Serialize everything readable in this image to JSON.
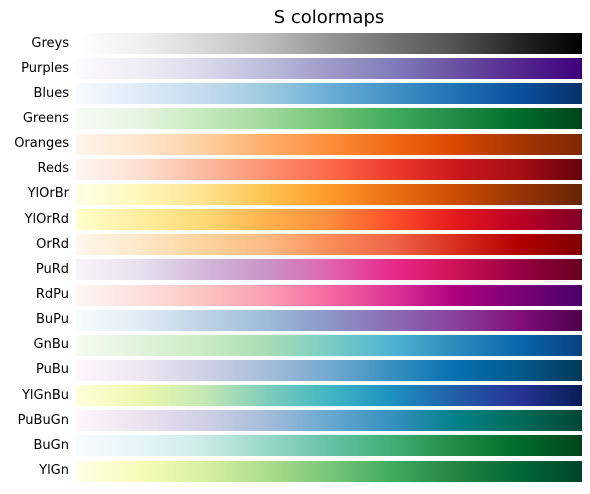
{
  "chart_data": {
    "type": "heatmap",
    "title": "S colormaps",
    "xlabel": "",
    "ylabel": "",
    "grid": false,
    "colormaps": [
      {
        "name": "Greys",
        "stops": [
          "#ffffff",
          "#f0f0f0",
          "#d9d9d9",
          "#bdbdbd",
          "#969696",
          "#737373",
          "#525252",
          "#252525",
          "#000000"
        ]
      },
      {
        "name": "Purples",
        "stops": [
          "#fcfbfd",
          "#efedf5",
          "#dadaeb",
          "#bcbddc",
          "#9e9ac8",
          "#807dba",
          "#6a51a3",
          "#54278f",
          "#3f007d"
        ]
      },
      {
        "name": "Blues",
        "stops": [
          "#f7fbff",
          "#deebf7",
          "#c6dbef",
          "#9ecae1",
          "#6baed6",
          "#4292c6",
          "#2171b5",
          "#08519c",
          "#08306b"
        ]
      },
      {
        "name": "Greens",
        "stops": [
          "#f7fcf5",
          "#e5f5e0",
          "#c7e9c0",
          "#a1d99b",
          "#74c476",
          "#41ab5d",
          "#238b45",
          "#006d2c",
          "#00441b"
        ]
      },
      {
        "name": "Oranges",
        "stops": [
          "#fff5eb",
          "#fee6ce",
          "#fdd0a2",
          "#fdae6b",
          "#fd8d3c",
          "#f16913",
          "#d94801",
          "#a63603",
          "#7f2704"
        ]
      },
      {
        "name": "Reds",
        "stops": [
          "#fff5f0",
          "#fee0d2",
          "#fcbba1",
          "#fc9272",
          "#fb6a4a",
          "#ef3b2c",
          "#cb181d",
          "#a50f15",
          "#67000d"
        ]
      },
      {
        "name": "YlOrBr",
        "stops": [
          "#ffffe5",
          "#fff7bc",
          "#fee391",
          "#fec44f",
          "#fe9929",
          "#ec7014",
          "#cc4c02",
          "#993404",
          "#662506"
        ]
      },
      {
        "name": "YlOrRd",
        "stops": [
          "#ffffcc",
          "#ffeda0",
          "#fed976",
          "#feb24c",
          "#fd8d3c",
          "#fc4e2a",
          "#e31a1c",
          "#bd0026",
          "#800026"
        ]
      },
      {
        "name": "OrRd",
        "stops": [
          "#fff7ec",
          "#fee8c8",
          "#fdd49e",
          "#fdbb84",
          "#fc8d59",
          "#ef6548",
          "#d7301f",
          "#b30000",
          "#7f0000"
        ]
      },
      {
        "name": "PuRd",
        "stops": [
          "#f7f4f9",
          "#e7e1ef",
          "#d4b9da",
          "#c994c7",
          "#df65b0",
          "#e7298a",
          "#ce1256",
          "#980043",
          "#67001f"
        ]
      },
      {
        "name": "RdPu",
        "stops": [
          "#fff7f3",
          "#fde0dd",
          "#fcc5c0",
          "#fa9fb5",
          "#f768a1",
          "#dd3497",
          "#ae017e",
          "#7a0177",
          "#49006a"
        ]
      },
      {
        "name": "BuPu",
        "stops": [
          "#f7fcfd",
          "#e0ecf4",
          "#bfd3e6",
          "#9ebcda",
          "#8c96c6",
          "#8c6bb1",
          "#88419d",
          "#810f7c",
          "#4d004b"
        ]
      },
      {
        "name": "GnBu",
        "stops": [
          "#f7fcf0",
          "#e0f3db",
          "#ccebc5",
          "#a8ddb5",
          "#7bccc4",
          "#4eb3d3",
          "#2b8cbe",
          "#0868ac",
          "#084081"
        ]
      },
      {
        "name": "PuBu",
        "stops": [
          "#fff7fb",
          "#ece7f2",
          "#d0d1e6",
          "#a6bddb",
          "#74a9cf",
          "#3690c0",
          "#0570b0",
          "#045a8d",
          "#023858"
        ]
      },
      {
        "name": "YlGnBu",
        "stops": [
          "#ffffd9",
          "#edf8b1",
          "#c7e9b4",
          "#7fcdbb",
          "#41b6c4",
          "#1d91c0",
          "#225ea8",
          "#253494",
          "#081d58"
        ]
      },
      {
        "name": "PuBuGn",
        "stops": [
          "#fff7fb",
          "#ece2f0",
          "#d0d1e6",
          "#a6bddb",
          "#67a9cf",
          "#3690c0",
          "#02818a",
          "#016c59",
          "#014636"
        ]
      },
      {
        "name": "BuGn",
        "stops": [
          "#f7fcfd",
          "#e5f5f9",
          "#ccece6",
          "#99d8c9",
          "#66c2a4",
          "#41ae76",
          "#238b45",
          "#006d2c",
          "#00441b"
        ]
      },
      {
        "name": "YlGn",
        "stops": [
          "#ffffe5",
          "#f7fcb9",
          "#d9f0a3",
          "#addd8e",
          "#78c679",
          "#41ab5d",
          "#238443",
          "#006837",
          "#004529"
        ]
      }
    ]
  }
}
